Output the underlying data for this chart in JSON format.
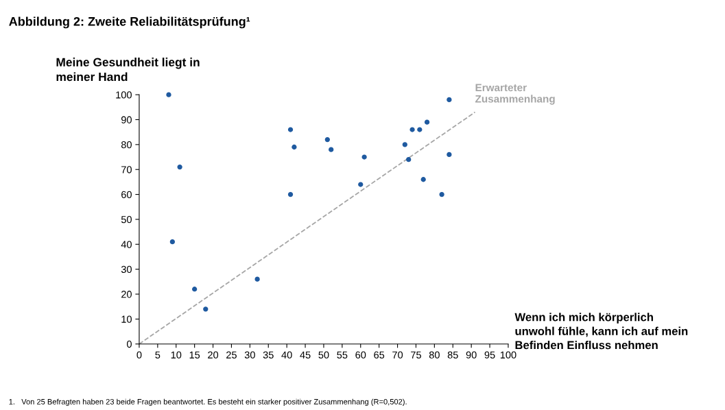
{
  "chart_data": {
    "type": "scatter",
    "title": "Abbildung 2: Zweite Reliabilitätsprüfung¹",
    "xlabel": "Wenn ich mich körperlich\nunwohl fühle, kann ich auf mein\nBefinden Einfluss nehmen",
    "ylabel": "Meine Gesundheit liegt in\nmeiner Hand",
    "annotations": [
      "1.   Von 25 Befragten haben 23 beide Fragen beantwortet. Es besteht ein starker positiver Zusammenhang (R=0,502)."
    ],
    "xlim": [
      0,
      100
    ],
    "ylim": [
      0,
      100
    ],
    "xticks": [
      0,
      5,
      10,
      15,
      20,
      25,
      30,
      35,
      40,
      45,
      50,
      55,
      60,
      65,
      70,
      75,
      80,
      85,
      90,
      95,
      100
    ],
    "yticks": [
      0,
      10,
      20,
      30,
      40,
      50,
      60,
      70,
      80,
      90,
      100
    ],
    "grid": false,
    "marker": "circle",
    "series": [
      {
        "color": "#1f5aa0",
        "x": [
          8,
          11,
          9,
          15,
          18,
          32,
          41,
          42,
          41,
          51,
          52,
          61,
          60,
          72,
          73,
          74,
          76,
          77,
          78,
          82,
          84,
          84
        ],
        "values": [
          100,
          71,
          41,
          22,
          14,
          26,
          86,
          79,
          60,
          82,
          78,
          75,
          64,
          80,
          74,
          86,
          86,
          66,
          89,
          60,
          98,
          76
        ]
      },
      {
        "type": "line",
        "name": "Erwarteter\nZusammenhang",
        "color": "#a6a6a6",
        "line_style": "dashed",
        "marker": "none",
        "x": [
          0,
          91
        ],
        "values": [
          0,
          93
        ]
      }
    ]
  }
}
